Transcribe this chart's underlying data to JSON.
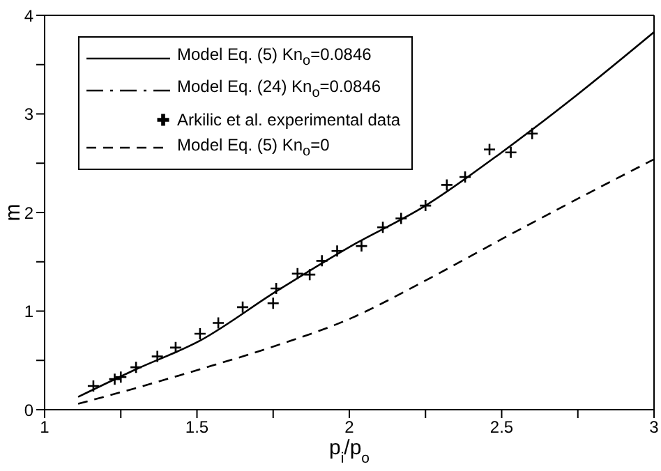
{
  "chart_data": {
    "type": "line",
    "xlabel": "p$_{i}$/p$_{o}$",
    "ylabel": "m",
    "xlim": [
      1,
      3
    ],
    "xticks": [
      1,
      {
        "value": 1.25,
        "label": null
      },
      1.5,
      {
        "value": 1.75,
        "label": null
      },
      2,
      {
        "value": 2.25,
        "label": null
      },
      2.5,
      {
        "value": 2.75,
        "label": null
      },
      3
    ],
    "ylim": [
      0,
      4
    ],
    "yticks": [
      0,
      {
        "value": 0.5,
        "label": null
      },
      1,
      {
        "value": 1.5,
        "label": null
      },
      2,
      {
        "value": 2.5,
        "label": null
      },
      3,
      {
        "value": 3.5,
        "label": null
      },
      4
    ],
    "grid": false,
    "legend": "top left",
    "series": [
      {
        "name": "Model Eq. (5) Kn$_{o}$=0.0846",
        "line_style": "solid",
        "color": "#000000",
        "x": [
          1.11,
          1.3,
          1.51,
          1.76,
          2.0,
          2.25,
          2.5,
          2.75,
          3.0
        ],
        "values": [
          0.13,
          0.41,
          0.7,
          1.2,
          1.65,
          2.07,
          2.61,
          3.2,
          3.83
        ]
      },
      {
        "name": "Model Eq. (24) Kn$_{o}$=0.0846",
        "line_style": "dashdot",
        "color": "#000000"
      },
      {
        "name": "Arkilic et al. experimental data",
        "type": "scatter",
        "marker": "cross",
        "color": "#000000",
        "x": [
          1.16,
          1.23,
          1.25,
          1.3,
          1.37,
          1.43,
          1.51,
          1.57,
          1.65,
          1.75,
          1.76,
          1.83,
          1.87,
          1.91,
          1.96,
          2.04,
          2.11,
          2.17,
          2.25,
          2.32,
          2.38,
          2.46,
          2.53,
          2.6
        ],
        "values": [
          0.24,
          0.31,
          0.33,
          0.43,
          0.54,
          0.63,
          0.77,
          0.88,
          1.04,
          1.08,
          1.23,
          1.38,
          1.37,
          1.51,
          1.61,
          1.66,
          1.85,
          1.94,
          2.07,
          2.28,
          2.36,
          2.64,
          2.61,
          2.8
        ]
      },
      {
        "name": "Model Eq. (5) Kn$_{o}$=0",
        "line_style": "dashed",
        "color": "#000000",
        "x": [
          1.11,
          1.3,
          1.51,
          1.76,
          2.0,
          2.25,
          2.5,
          2.75,
          3.0
        ],
        "values": [
          0.06,
          0.22,
          0.41,
          0.65,
          0.92,
          1.31,
          1.73,
          2.14,
          2.54
        ]
      }
    ]
  }
}
